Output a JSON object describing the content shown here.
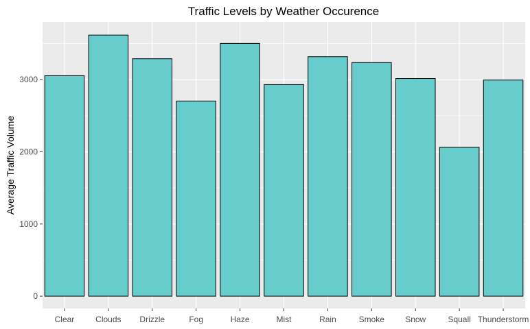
{
  "chart_data": {
    "type": "bar",
    "title": "Traffic Levels by Weather Occurence",
    "xlabel": "",
    "ylabel": "Average Traffic Volume",
    "categories": [
      "Clear",
      "Clouds",
      "Drizzle",
      "Fog",
      "Haze",
      "Mist",
      "Rain",
      "Smoke",
      "Snow",
      "Squall",
      "Thunderstorm"
    ],
    "values": [
      3055,
      3618,
      3290,
      2704,
      3502,
      2932,
      3318,
      3237,
      3016,
      2062,
      2995
    ],
    "yticks": [
      0,
      1000,
      2000,
      3000
    ],
    "ylim": [
      -170,
      3800
    ],
    "grid": true,
    "legend": "none",
    "colors": {
      "bar_fill": "#66CDCC",
      "bar_stroke": "#000000",
      "panel_background": "#EBEBEB",
      "grid_line": "#FFFFFF"
    }
  }
}
